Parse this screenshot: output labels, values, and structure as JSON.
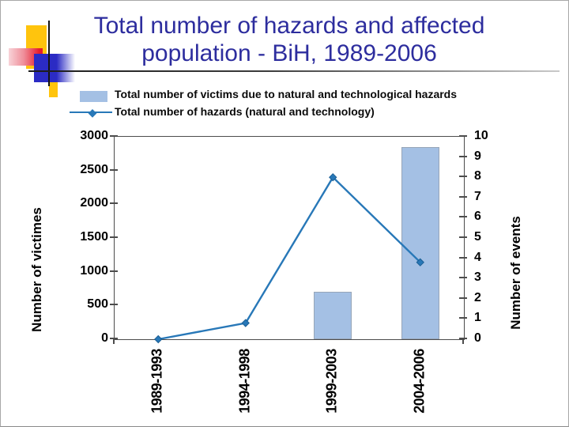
{
  "slide": {
    "title_line1": "Total number of hazards and affected",
    "title_line2": "population - BiH, 1989-2006",
    "title_color": "#2D2D9E"
  },
  "legend": {
    "items": [
      {
        "label": "Total number of victims due to natural and technological hazards",
        "marker": "bar-swatch",
        "color": "#A4C0E4"
      },
      {
        "label": "Total number of hazards (natural and technology)",
        "marker": "line-diamond",
        "color": "#2878B8"
      }
    ]
  },
  "chart_data": {
    "type": "combo-bar-line",
    "categories": [
      "1989-1993",
      "1994-1998",
      "1999-2003",
      "2004-2006"
    ],
    "series": [
      {
        "name": "Total number of victims due to natural and technological hazards",
        "type": "bar",
        "axis": "left",
        "color": "#A4C0E4",
        "values": [
          0,
          0,
          700,
          2850
        ]
      },
      {
        "name": "Total number of hazards (natural and technology)",
        "type": "line",
        "axis": "right",
        "color": "#2878B8",
        "marker": "diamond",
        "values": [
          0,
          0.8,
          8,
          3.8
        ]
      }
    ],
    "left_axis": {
      "title": "Number of victimes",
      "min": 0,
      "max": 3000,
      "step": 500,
      "ticks": [
        0,
        500,
        1000,
        1500,
        2000,
        2500,
        3000
      ]
    },
    "right_axis": {
      "title": "Number of events",
      "min": 0,
      "max": 10,
      "step": 1,
      "ticks": [
        0,
        1,
        2,
        3,
        4,
        5,
        6,
        7,
        8,
        9,
        10
      ]
    },
    "legend_position": "top",
    "grid": false
  },
  "palette": {
    "deco_yellow": "#FFC40D",
    "deco_red": "#E61C2C",
    "deco_blue": "#2B2BC4",
    "axis_color": "#4c4c4c"
  }
}
